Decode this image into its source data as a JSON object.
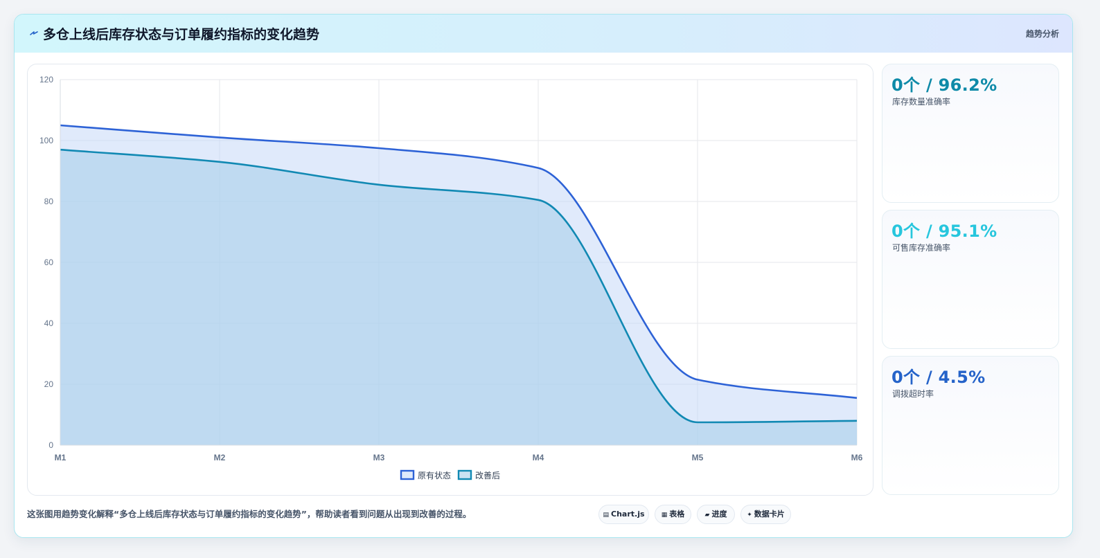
{
  "header": {
    "title": "多仓上线后库存状态与订单履约指标的变化趋势",
    "badge": "趋势分析",
    "icon": "lightning-icon"
  },
  "stats": [
    {
      "value": "0个 / 96.2%",
      "label": "库存数量准确率",
      "color": "#0e8aa8"
    },
    {
      "value": "0个 / 95.1%",
      "label": "可售库存准确率",
      "color": "#27c6dd"
    },
    {
      "value": "0个 / 4.5%",
      "label": "调拨超时率",
      "color": "#2563c9"
    }
  ],
  "footer": {
    "text": "这张图用趋势变化解释“多仓上线后库存状态与订单履约指标的变化趋势”，帮助读者看到问题从出现到改善的过程。",
    "pills": [
      {
        "icon": "chart-icon",
        "glyph": "▤",
        "label": "Chart.js"
      },
      {
        "icon": "table-icon",
        "glyph": "▦",
        "label": "表格"
      },
      {
        "icon": "progress-icon",
        "glyph": "▰",
        "label": "进度"
      },
      {
        "icon": "card-icon",
        "glyph": "✦",
        "label": "数据卡片"
      }
    ]
  },
  "chart_data": {
    "type": "area",
    "categories": [
      "M1",
      "M2",
      "M3",
      "M4",
      "M5",
      "M6"
    ],
    "ylim": [
      0,
      120
    ],
    "yticks": [
      0,
      20,
      40,
      60,
      80,
      100,
      120
    ],
    "grid": true,
    "legend_position": "bottom",
    "series": [
      {
        "name": "原有状态",
        "values": [
          105,
          101,
          97.5,
          91,
          21.5,
          15.5
        ],
        "color": "#2d62d6",
        "fill": "rgba(191,211,247,0.48)"
      },
      {
        "name": "改善后",
        "values": [
          97,
          93,
          85.5,
          80.5,
          7.5,
          8
        ],
        "color": "#1189b3",
        "fill": "rgba(171,209,234,0.62)"
      }
    ]
  }
}
